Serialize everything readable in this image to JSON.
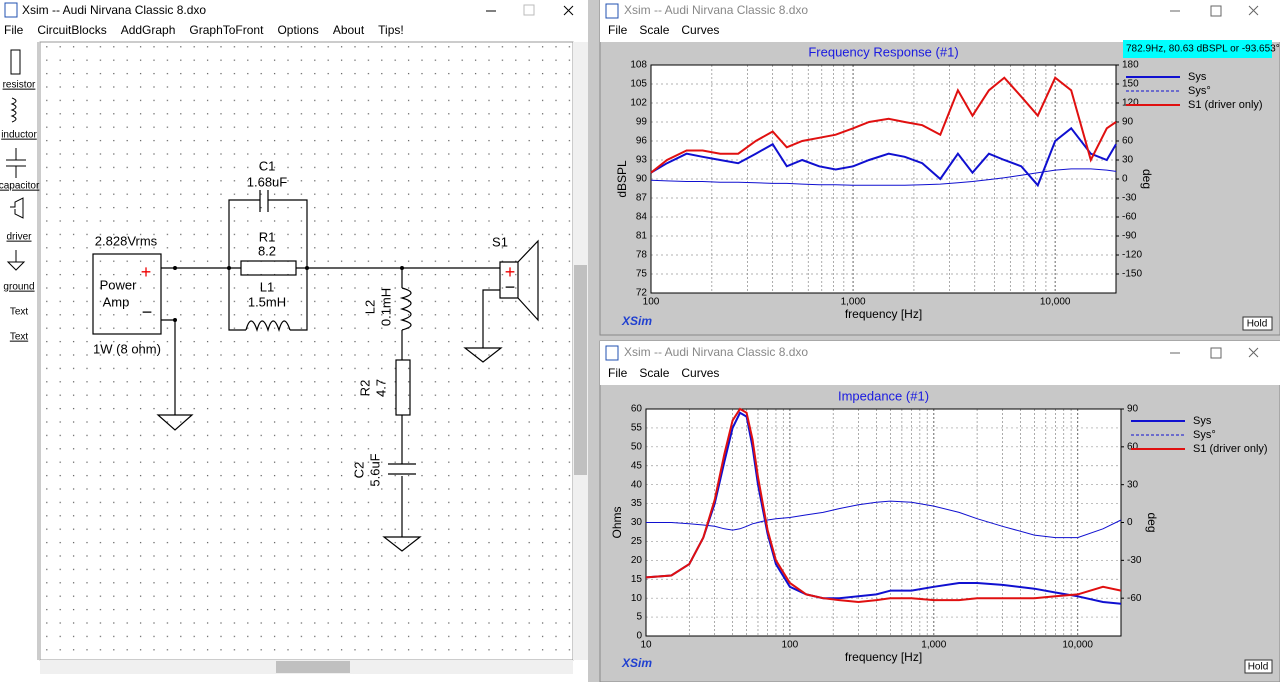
{
  "schematic_window": {
    "title": "Xsim -- Audi Nirvana Classic 8.dxo",
    "menu": [
      "File",
      "CircuitBlocks",
      "AddGraph",
      "GraphToFront",
      "Options",
      "About",
      "Tips!"
    ],
    "toolbox": [
      "resistor",
      "inductor",
      "capacitor",
      "driver",
      "ground",
      "Text",
      "Text"
    ],
    "source": {
      "voltage": "2.828Vrms",
      "name_1": "Power",
      "name_2": "Amp",
      "plus": "+",
      "minus": "−",
      "power": "1W (8 ohm)"
    },
    "c1": {
      "name": "C1",
      "value": "1.68uF"
    },
    "r1": {
      "name": "R1",
      "value": "8.2"
    },
    "l1": {
      "name": "L1",
      "value": "1.5mH"
    },
    "l2": {
      "name": "L2",
      "value": "0.1mH"
    },
    "r2": {
      "name": "R2",
      "value": "4.7"
    },
    "c2": {
      "name": "C2",
      "value": "5.6uF"
    },
    "s1": {
      "name": "S1",
      "plus": "+",
      "minus": "−"
    }
  },
  "response_window": {
    "title": "Xsim -- Audi Nirvana Classic 8.dxo",
    "menu": [
      "File",
      "Scale",
      "Curves"
    ],
    "readout": "782.9Hz, 80.63 dBSPL or -93.653°",
    "logo": "XSim",
    "hold": "Hold",
    "chart": {
      "type": "line",
      "title": "Frequency Response (#1)",
      "x_label": "frequency [Hz]",
      "y_label": "dBSPL",
      "y2_label": "deg",
      "log_x": true,
      "grid": true,
      "x": [
        100,
        120,
        150,
        180,
        220,
        270,
        330,
        400,
        470,
        560,
        680,
        820,
        1000,
        1200,
        1500,
        1800,
        2200,
        2700,
        3300,
        3900,
        4700,
        5600,
        6800,
        8200,
        10000,
        12000,
        15000,
        18000,
        20000
      ],
      "xlim": [
        100,
        20000
      ],
      "xticks": [
        100,
        {
          "value": 1000,
          "label": "1,000"
        },
        {
          "value": 10000,
          "label": "10,000"
        }
      ],
      "ylim": [
        72,
        108
      ],
      "yticks": [
        72,
        75,
        78,
        81,
        84,
        87,
        90,
        93,
        96,
        99,
        102,
        105,
        108
      ],
      "y2lim": [
        -180,
        180
      ],
      "y2ticks": [
        180,
        150,
        120,
        90,
        60,
        30,
        0,
        -30,
        -60,
        -90,
        -120,
        -150
      ],
      "series": [
        {
          "name": "Sys",
          "color": "#1010d0",
          "values": [
            91,
            92.5,
            94,
            93.5,
            93,
            92.5,
            94,
            95.5,
            92,
            93,
            92,
            91.5,
            92,
            93,
            94,
            93.5,
            92.5,
            90,
            94,
            91,
            94,
            93,
            92,
            89,
            96,
            98,
            94,
            93,
            95.5
          ]
        },
        {
          "name": "Sys°",
          "color": "#1010d0",
          "axis": "y2",
          "values": [
            -2,
            -3,
            -4,
            -4,
            -5,
            -5,
            -6,
            -7,
            -7,
            -8,
            -9,
            -9,
            -10,
            -10,
            -10,
            -10,
            -9,
            -8,
            -6,
            -4,
            -1,
            2,
            6,
            10,
            14,
            16,
            16,
            14,
            12
          ]
        },
        {
          "name": "S1 (driver only)",
          "color": "#e01010",
          "values": [
            91,
            93,
            94.5,
            94.5,
            94,
            94,
            96,
            97.5,
            95,
            96,
            96.5,
            97,
            98,
            99,
            99.5,
            99,
            98.5,
            97,
            104,
            100,
            104,
            106,
            103,
            100,
            106,
            104,
            93,
            98,
            99
          ]
        }
      ]
    }
  },
  "impedance_window": {
    "title": "Xsim -- Audi Nirvana Classic 8.dxo",
    "menu": [
      "File",
      "Scale",
      "Curves"
    ],
    "logo": "XSim",
    "hold": "Hold",
    "chart": {
      "type": "line",
      "title": "Impedance (#1)",
      "x_label": "frequency [Hz]",
      "y_label": "Ohms",
      "y2_label": "deg",
      "log_x": true,
      "grid": true,
      "x": [
        10,
        15,
        20,
        25,
        30,
        35,
        40,
        45,
        50,
        55,
        60,
        70,
        80,
        100,
        130,
        170,
        220,
        300,
        400,
        500,
        700,
        1000,
        1500,
        2000,
        3000,
        5000,
        7000,
        10000,
        15000,
        20000
      ],
      "xlim": [
        10,
        20000
      ],
      "xticks": [
        10,
        100,
        {
          "value": 1000,
          "label": "1,000"
        },
        {
          "value": 10000,
          "label": "10,000"
        }
      ],
      "ylim": [
        0,
        60
      ],
      "yticks": [
        0,
        5,
        10,
        15,
        20,
        25,
        30,
        35,
        40,
        45,
        50,
        55,
        60
      ],
      "y2lim": [
        -90,
        90
      ],
      "y2ticks": [
        90,
        60,
        30,
        0,
        -30,
        -60
      ],
      "series": [
        {
          "name": "Sys",
          "color": "#1010d0",
          "values": [
            15.5,
            16,
            19,
            26,
            35,
            46,
            55,
            59,
            58,
            50,
            40,
            27,
            19,
            13,
            11,
            10,
            10,
            10.5,
            11,
            12,
            12,
            13,
            14,
            14,
            13.5,
            12.5,
            11.5,
            10.5,
            9,
            8.5
          ]
        },
        {
          "name": "Sys°",
          "color": "#1010d0",
          "axis": "y2",
          "values": [
            0,
            0,
            -1,
            -2,
            -3,
            -5,
            -6,
            -5,
            -3,
            -1,
            0,
            2,
            3,
            4,
            6,
            8,
            11,
            14,
            16,
            17,
            16,
            13,
            8,
            3,
            -3,
            -10,
            -12,
            -12,
            -5,
            2
          ]
        },
        {
          "name": "S1 (driver only)",
          "color": "#e01010",
          "values": [
            15.5,
            16,
            19,
            26,
            36,
            48,
            57,
            60,
            59,
            52,
            42,
            28,
            20,
            14,
            11,
            10,
            9.5,
            9,
            9.5,
            10,
            10,
            9.5,
            9.5,
            10,
            10,
            10,
            10.5,
            11,
            13,
            12
          ]
        }
      ]
    }
  }
}
